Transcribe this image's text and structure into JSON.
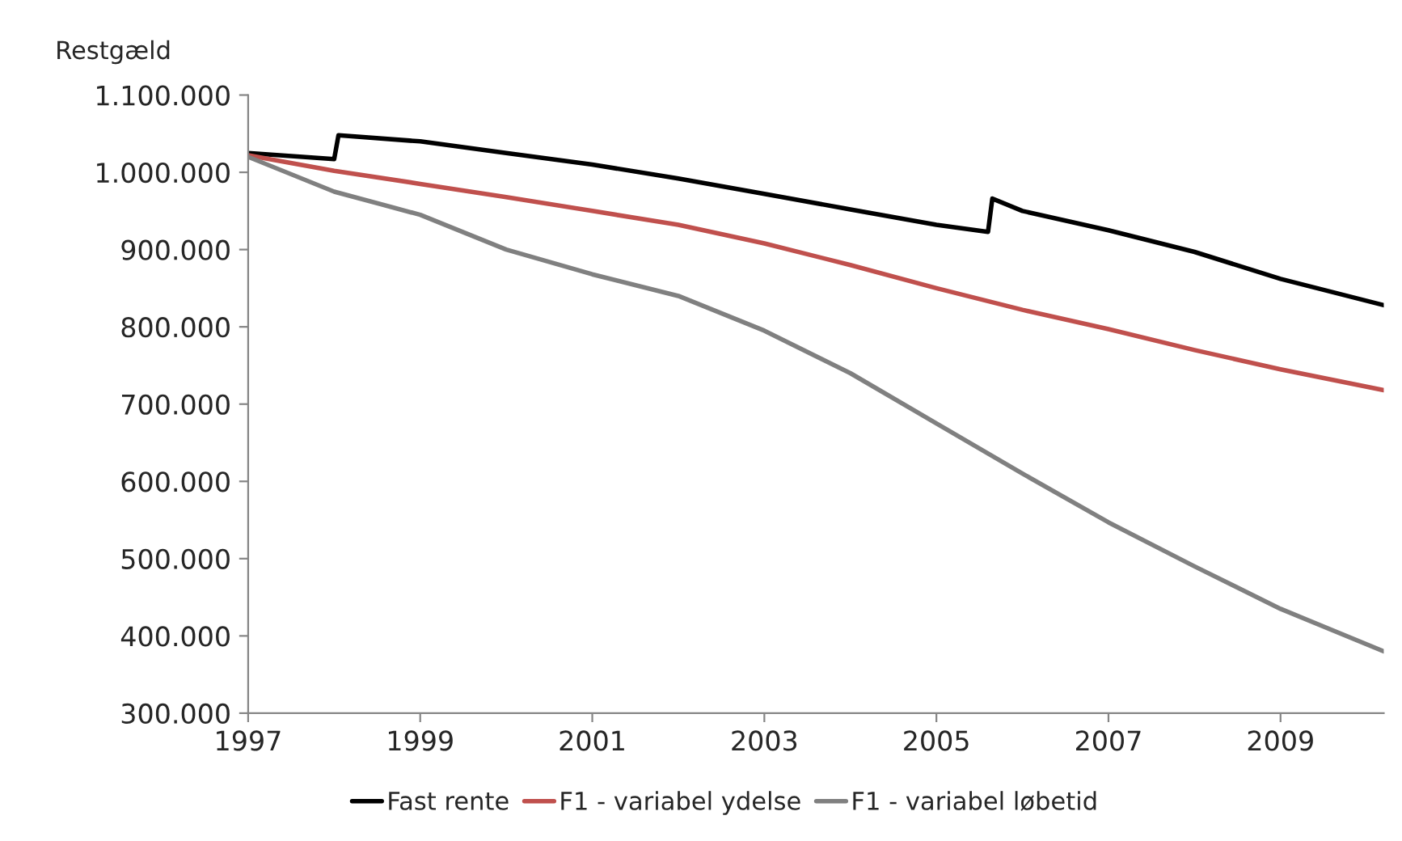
{
  "chart_data": {
    "type": "line",
    "ylabel": "Restgæld",
    "x": [
      1997,
      1998,
      1998.05,
      1999,
      2000,
      2001,
      2002,
      2003,
      2004,
      2005,
      2005.6,
      2005.65,
      2006,
      2007,
      2008,
      2009,
      2010.2
    ],
    "series": [
      {
        "name": "Fast rente",
        "color": "#000000",
        "values": [
          1025000,
          1017000,
          1048000,
          1040000,
          1025000,
          1010000,
          992000,
          972000,
          952000,
          932000,
          923000,
          966000,
          950000,
          925000,
          897000,
          862000,
          828000
        ]
      },
      {
        "name": "F1 - variabel ydelse",
        "color": "#c0504d",
        "x": [
          1997,
          1998,
          1999,
          2000,
          2001,
          2002,
          2003,
          2004,
          2005,
          2006,
          2007,
          2008,
          2009,
          2010.2
        ],
        "values": [
          1022000,
          1002000,
          985000,
          968000,
          950000,
          932000,
          908000,
          880000,
          850000,
          822000,
          797000,
          770000,
          745000,
          718000
        ]
      },
      {
        "name": "F1 - variabel løbetid",
        "color": "#808080",
        "x": [
          1997,
          1998,
          1999,
          2000,
          2001,
          2002,
          2003,
          2004,
          2005,
          2006,
          2007,
          2008,
          2009,
          2010.2
        ],
        "values": [
          1020000,
          975000,
          945000,
          900000,
          868000,
          840000,
          795000,
          740000,
          675000,
          610000,
          547000,
          490000,
          435000,
          380000
        ]
      }
    ],
    "xlim": [
      1997,
      2010.2
    ],
    "xticks": [
      1997,
      1999,
      2001,
      2003,
      2005,
      2007,
      2009
    ],
    "ylim": [
      300000,
      1100000
    ],
    "yticks": [
      {
        "value": 300000,
        "label": "300.000"
      },
      {
        "value": 400000,
        "label": "400.000"
      },
      {
        "value": 500000,
        "label": "500.000"
      },
      {
        "value": 600000,
        "label": "600.000"
      },
      {
        "value": 700000,
        "label": "700.000"
      },
      {
        "value": 800000,
        "label": "800.000"
      },
      {
        "value": 900000,
        "label": "900.000"
      },
      {
        "value": 1000000,
        "label": "1.000.000"
      },
      {
        "value": 1100000,
        "label": "1.100.000"
      }
    ],
    "grid": false,
    "legend": "bottom",
    "marker": "none",
    "line_style": "solid"
  }
}
